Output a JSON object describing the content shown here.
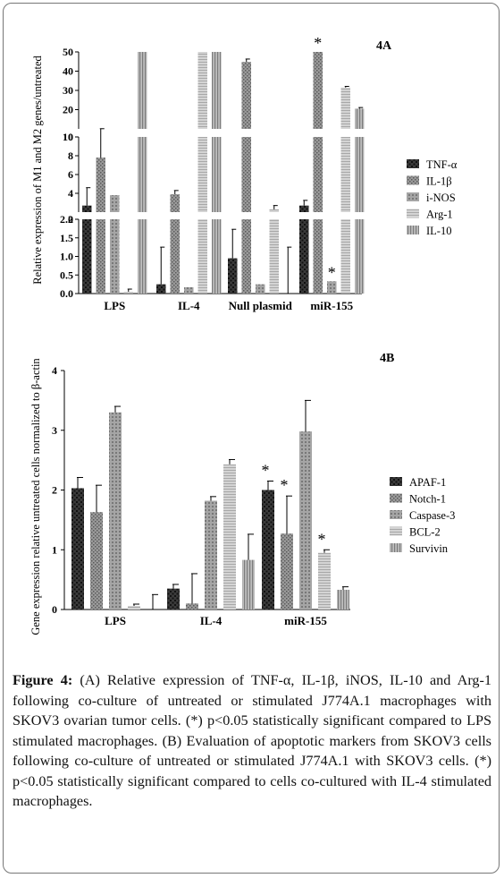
{
  "chart_data": [
    {
      "type": "bar",
      "panel_label": "4A",
      "ylabel": "Relative expression of M1 and M2 genes/untreated",
      "categories": [
        "LPS",
        "IL-4",
        "Null plasmid",
        "miR-155"
      ],
      "segments": [
        {
          "ylim": [
            0,
            2.0
          ],
          "ticks": [
            "0.0",
            "0.5",
            "1.0",
            "1.5",
            "2.0"
          ]
        },
        {
          "ylim": [
            2,
            10
          ],
          "ticks": [
            "2",
            "4",
            "6",
            "8",
            "10"
          ]
        },
        {
          "ylim": [
            10,
            50
          ],
          "ticks": [
            "10",
            "20",
            "30",
            "40",
            "50"
          ]
        }
      ],
      "legend_position": "right",
      "series": [
        {
          "name": "TNF-α",
          "fill": "#3a3a3a",
          "values": [
            2.7,
            0.25,
            0.95,
            2.7
          ],
          "errors": [
            1.9,
            1.0,
            0.78,
            0.55
          ]
        },
        {
          "name": "IL-1β",
          "fill": "#8a8a8a",
          "values": [
            7.8,
            3.9,
            44.8,
            50
          ],
          "errors": [
            2.3,
            0.4,
            1.5,
            0
          ]
        },
        {
          "name": "i-NOS",
          "fill": "#9a9a9a",
          "values": [
            3.8,
            0.17,
            0.25,
            0.33
          ],
          "errors": [
            0,
            0,
            0,
            0
          ]
        },
        {
          "name": "Arg-1",
          "fill": "#c4c4c4",
          "values": [
            0.05,
            50,
            2.3,
            31.5
          ],
          "errors": [
            0.07,
            0,
            0.4,
            0.6
          ]
        },
        {
          "name": "IL-10",
          "fill": "#a8a8a8",
          "values": [
            50,
            50,
            0,
            20.5
          ],
          "errors": [
            0,
            0,
            1.25,
            0.6
          ]
        }
      ],
      "significance": [
        {
          "category": "miR-155",
          "series": "IL-1β",
          "label": "*"
        },
        {
          "category": "miR-155",
          "series": "i-NOS",
          "label": "*"
        }
      ]
    },
    {
      "type": "bar",
      "panel_label": "4B",
      "ylabel": "Gene expression relative untreated cells normalized to β-actin",
      "categories": [
        "LPS",
        "IL-4",
        "miR-155"
      ],
      "ylim": [
        0,
        4
      ],
      "ticks": [
        "0",
        "1",
        "2",
        "3",
        "4"
      ],
      "legend_position": "right",
      "series": [
        {
          "name": "APAF-1",
          "fill": "#3a3a3a",
          "values": [
            2.03,
            0.35,
            2.0
          ],
          "errors": [
            0.18,
            0.07,
            0.15
          ]
        },
        {
          "name": "Notch-1",
          "fill": "#8a8a8a",
          "values": [
            1.63,
            0.1,
            1.27
          ],
          "errors": [
            0.45,
            0.5,
            0.63
          ]
        },
        {
          "name": "Caspase-3",
          "fill": "#9a9a9a",
          "values": [
            3.3,
            1.82,
            2.98
          ],
          "errors": [
            0.1,
            0.07,
            0.52
          ]
        },
        {
          "name": "BCL-2",
          "fill": "#c4c4c4",
          "values": [
            0.06,
            2.43,
            0.95
          ],
          "errors": [
            0.03,
            0.08,
            0.05
          ]
        },
        {
          "name": "Survivin",
          "fill": "#a8a8a8",
          "values": [
            0.0,
            0.83,
            0.33
          ],
          "errors": [
            0.25,
            0.43,
            0.05
          ]
        }
      ],
      "significance": [
        {
          "category": "miR-155",
          "series": "APAF-1",
          "label": "*"
        },
        {
          "category": "miR-155",
          "series": "Notch-1",
          "label": "*"
        },
        {
          "category": "miR-155",
          "series": "BCL-2",
          "label": "*"
        }
      ]
    }
  ],
  "caption": {
    "label": "Figure 4:",
    "text": " (A) Relative expression of TNF-α, IL-1β, iNOS, IL-10 and Arg-1 following co-culture of untreated or stimulated J774A.1 macrophages with SKOV3 ovarian tumor cells. (*) p<0.05 statistically significant compared to LPS stimulated macrophages. (B) Evaluation of apoptotic markers from SKOV3 cells following co-culture of untreated or stimulated J774A.1 with SKOV3 cells. (*) p<0.05 statistically significant compared to cells co-cultured with IL-4 stimulated macrophages."
  }
}
